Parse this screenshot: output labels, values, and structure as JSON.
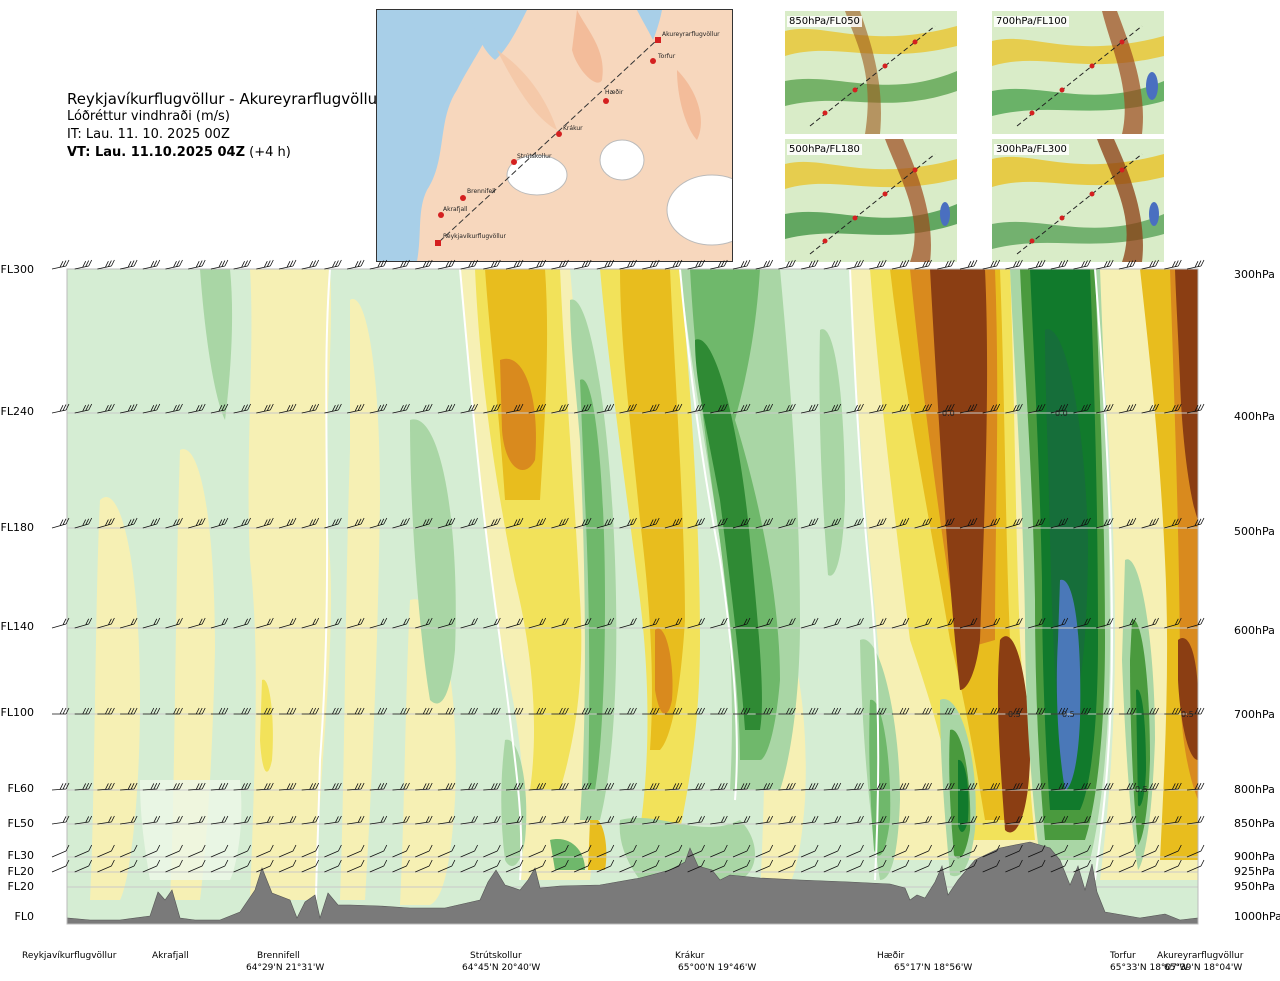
{
  "header": {
    "route": "Reykjavíkurflugvöllur - Akureyrarflugvöllur",
    "parameter": "Lóðréttur vindhraði (m/s)",
    "issue_time": "IT: Lau. 11. 10. 2025 00Z",
    "valid_prefix": "VT: Lau. 11.10.2025 04Z",
    "valid_suffix": "(+4 h)"
  },
  "map": {
    "waypoints": [
      "Akureyrarflugvöllur",
      "Torfur",
      "Hæðir",
      "Krákur",
      "Strútskollur",
      "Brennifell",
      "Akrafjall",
      "Reykjavíkurflugvöllur"
    ]
  },
  "thumbnails": [
    {
      "label": "850hPa/FL050"
    },
    {
      "label": "700hPa/FL100"
    },
    {
      "label": "500hPa/FL180"
    },
    {
      "label": "300hPa/FL300"
    }
  ],
  "chart_data": {
    "type": "heatmap",
    "title": "Lóðréttur vindhraði (m/s)",
    "x_waypoints": [
      {
        "name": "Reykjavíkurflugvöllur",
        "coord": ""
      },
      {
        "name": "Akrafjall",
        "coord": ""
      },
      {
        "name": "Brennifell",
        "coord": "64°29'N 21°31'W"
      },
      {
        "name": "Strútskollur",
        "coord": "64°45'N 20°40'W"
      },
      {
        "name": "Krákur",
        "coord": "65°00'N 19°46'W"
      },
      {
        "name": "Hæðir",
        "coord": "65°17'N 18°56'W"
      },
      {
        "name": "Torfur",
        "coord": "65°33'N 18°07'W"
      },
      {
        "name": "Akureyrarflugvöllur",
        "coord": "65°39'N 18°04'W"
      }
    ],
    "flight_levels": [
      "FL300",
      "FL240",
      "FL180",
      "FL140",
      "FL100",
      "FL60",
      "FL50",
      "FL30",
      "FL20",
      "FL20",
      "FL0"
    ],
    "pressure_levels": [
      "300hPa",
      "400hPa",
      "500hPa",
      "600hPa",
      "700hPa",
      "800hPa",
      "850hPa",
      "900hPa",
      "925hPa",
      "950hPa",
      "1000hPa"
    ],
    "contour_labels": [
      "0.0",
      "0.0",
      "0.5",
      "0.5",
      "0.5",
      "0.5"
    ],
    "colors": {
      "strong_up": "#3d7ab8",
      "up_dark": "#117a2c",
      "up_mid": "#3fa53a",
      "up_light": "#8ac98a",
      "up_faint": "#c5e4c5",
      "neutral_green": "#d5edd3",
      "neutral_yellow": "#f6f0b4",
      "down_light": "#f2e25a",
      "down_mid": "#e8bd1e",
      "down_orange": "#d98a1e",
      "down_strong": "#8b3e13",
      "terrain": "#7a7a7a"
    }
  }
}
